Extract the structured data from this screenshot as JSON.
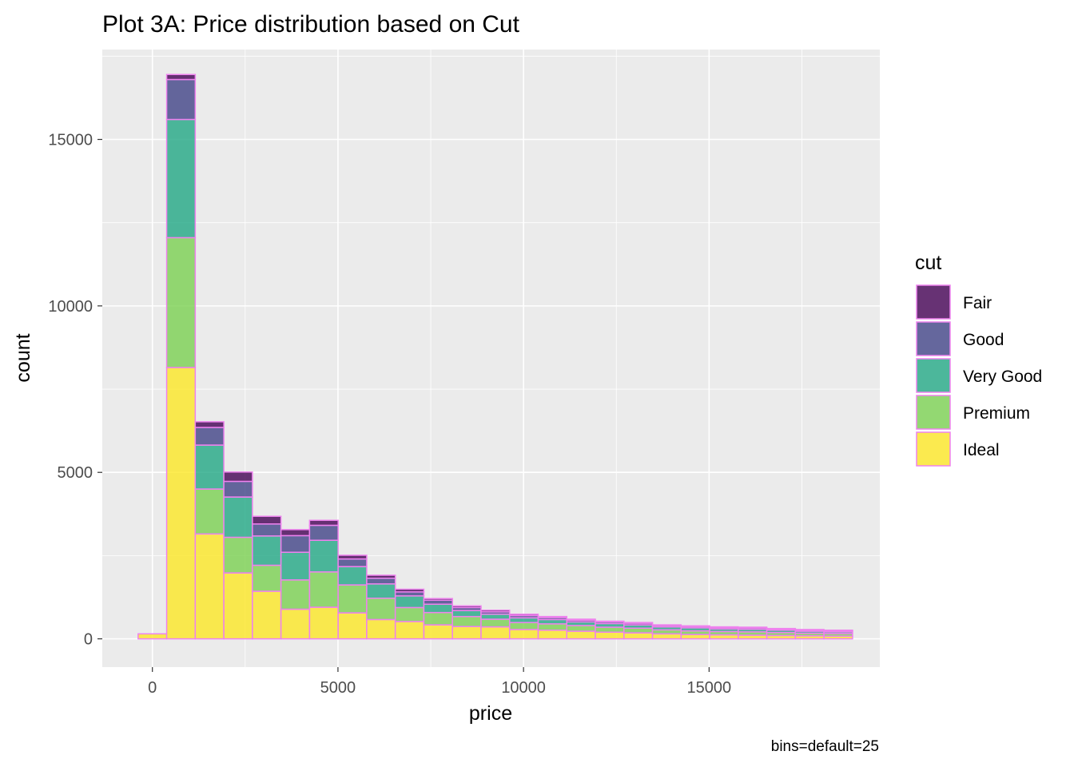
{
  "chart_data": {
    "type": "bar",
    "subtype": "stacked-histogram",
    "title": "Plot 3A: Price distribution based on Cut",
    "xlabel": "price",
    "ylabel": "count",
    "caption": "bins=default=25",
    "xlim": [
      -1350,
      19600
    ],
    "ylim": [
      -850,
      17700
    ],
    "x_ticks": [
      {
        "value": 0,
        "label": "0"
      },
      {
        "value": 5000,
        "label": "5000"
      },
      {
        "value": 10000,
        "label": "10000"
      },
      {
        "value": 15000,
        "label": "15000"
      }
    ],
    "y_ticks": [
      {
        "value": 0,
        "label": "0"
      },
      {
        "value": 5000,
        "label": "5000"
      },
      {
        "value": 10000,
        "label": "10000"
      },
      {
        "value": 15000,
        "label": "15000"
      }
    ],
    "bin_width": 770,
    "bin_centers": [
      0,
      770,
      1540,
      2310,
      3080,
      3850,
      4620,
      5390,
      6160,
      6930,
      7700,
      8470,
      9240,
      10010,
      10780,
      11550,
      12320,
      13090,
      13860,
      14630,
      15400,
      16170,
      16940,
      17710,
      18480
    ],
    "legend": {
      "title": "cut",
      "position": "right"
    },
    "grid": true,
    "bar_outline_color": "#ee82ee",
    "series": [
      {
        "name": "Ideal",
        "color": "#fde725",
        "values": [
          150,
          8150,
          3150,
          1980,
          1430,
          890,
          950,
          780,
          580,
          520,
          420,
          370,
          360,
          280,
          260,
          230,
          200,
          180,
          150,
          130,
          120,
          110,
          100,
          90,
          80
        ]
      },
      {
        "name": "Premium",
        "color": "#7ad151",
        "values": [
          0,
          3900,
          1350,
          1070,
          780,
          880,
          1060,
          840,
          640,
          420,
          370,
          300,
          230,
          210,
          190,
          170,
          150,
          140,
          120,
          110,
          100,
          100,
          90,
          80,
          80
        ]
      },
      {
        "name": "Very Good",
        "color": "#22a884",
        "values": [
          0,
          3550,
          1320,
          1210,
          880,
          830,
          950,
          550,
          430,
          350,
          250,
          180,
          150,
          140,
          130,
          110,
          110,
          100,
          90,
          90,
          80,
          80,
          70,
          60,
          50
        ]
      },
      {
        "name": "Good",
        "color": "#414487",
        "values": [
          0,
          1200,
          530,
          470,
          360,
          500,
          450,
          230,
          170,
          120,
          120,
          90,
          70,
          70,
          60,
          50,
          50,
          50,
          40,
          40,
          40,
          40,
          30,
          30,
          30
        ]
      },
      {
        "name": "Fair",
        "color": "#440154",
        "values": [
          0,
          150,
          170,
          280,
          230,
          180,
          150,
          110,
          90,
          80,
          50,
          50,
          50,
          40,
          30,
          30,
          20,
          20,
          20,
          20,
          20,
          20,
          20,
          20,
          20
        ]
      }
    ]
  }
}
